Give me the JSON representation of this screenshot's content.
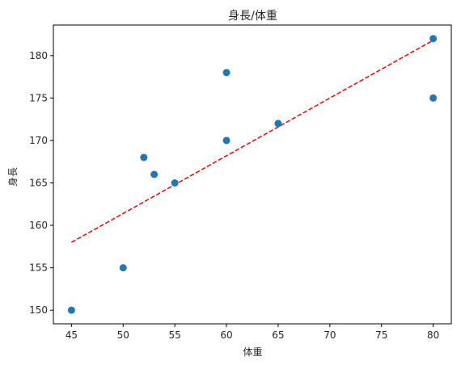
{
  "chart_data": {
    "type": "scatter",
    "title": "身長/体重",
    "xlabel": "体重",
    "ylabel": "身長",
    "xlim": [
      43.25,
      81.75
    ],
    "ylim": [
      148.4,
      183.6
    ],
    "xticks": [
      45,
      50,
      55,
      60,
      65,
      70,
      75,
      80
    ],
    "yticks": [
      150,
      155,
      160,
      165,
      170,
      175,
      180
    ],
    "grid": false,
    "legend": "none",
    "series": [
      {
        "x": [
          45,
          50,
          52,
          53,
          55,
          60,
          60,
          65,
          80,
          80
        ],
        "y": [
          150,
          155,
          168,
          166,
          165,
          178,
          170,
          172,
          182,
          175
        ],
        "color": "#1f77b4",
        "marker": "circle"
      }
    ],
    "trendline": {
      "style": "dashed",
      "color": "#ff0000",
      "x": [
        45,
        80
      ],
      "y": [
        158.0,
        181.8
      ]
    }
  }
}
